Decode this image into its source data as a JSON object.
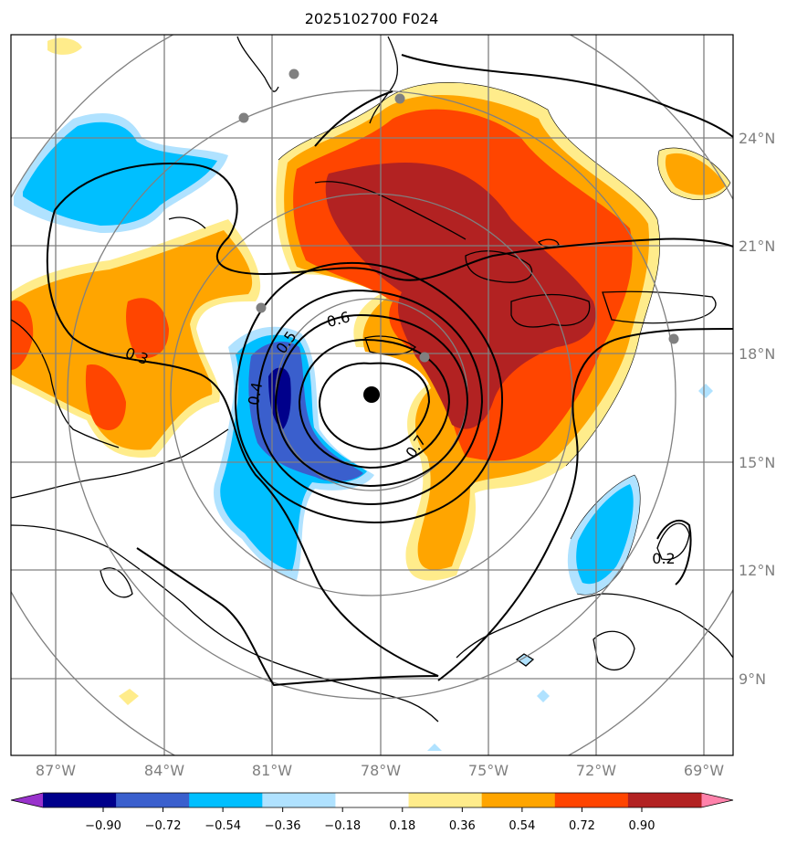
{
  "title": "2025102700 F024",
  "lon_labels": [
    "87°W",
    "84°W",
    "81°W",
    "78°W",
    "75°W",
    "72°W",
    "69°W"
  ],
  "lat_labels": [
    "24°N",
    "21°N",
    "18°N",
    "15°N",
    "12°N",
    "9°N"
  ],
  "contour_labels": [
    "0.2",
    "0.3",
    "0.4",
    "0.5",
    "0.6",
    "0.7"
  ],
  "colorbar": {
    "ticks": [
      "−0.90",
      "−0.72",
      "−0.54",
      "−0.36",
      "−0.18",
      "0.18",
      "0.36",
      "0.54",
      "0.72",
      "0.90"
    ],
    "colors": [
      "#9932cc",
      "#00008b",
      "#3a5fcd",
      "#00bfff",
      "#b0e2ff",
      "#ffffff",
      "#ffec8b",
      "#ffa500",
      "#ff4500",
      "#b22222",
      "#ff82ab"
    ]
  },
  "map_colors": {
    "light_blue": "#b0e2ff",
    "blue": "#00bfff",
    "mid_blue": "#3a5fcd",
    "navy": "#00008b",
    "yellow": "#ffec8b",
    "orange": "#ffa500",
    "red_orange": "#ff4500",
    "dark_red": "#b22222"
  },
  "center_marker": "storm-center-dot"
}
